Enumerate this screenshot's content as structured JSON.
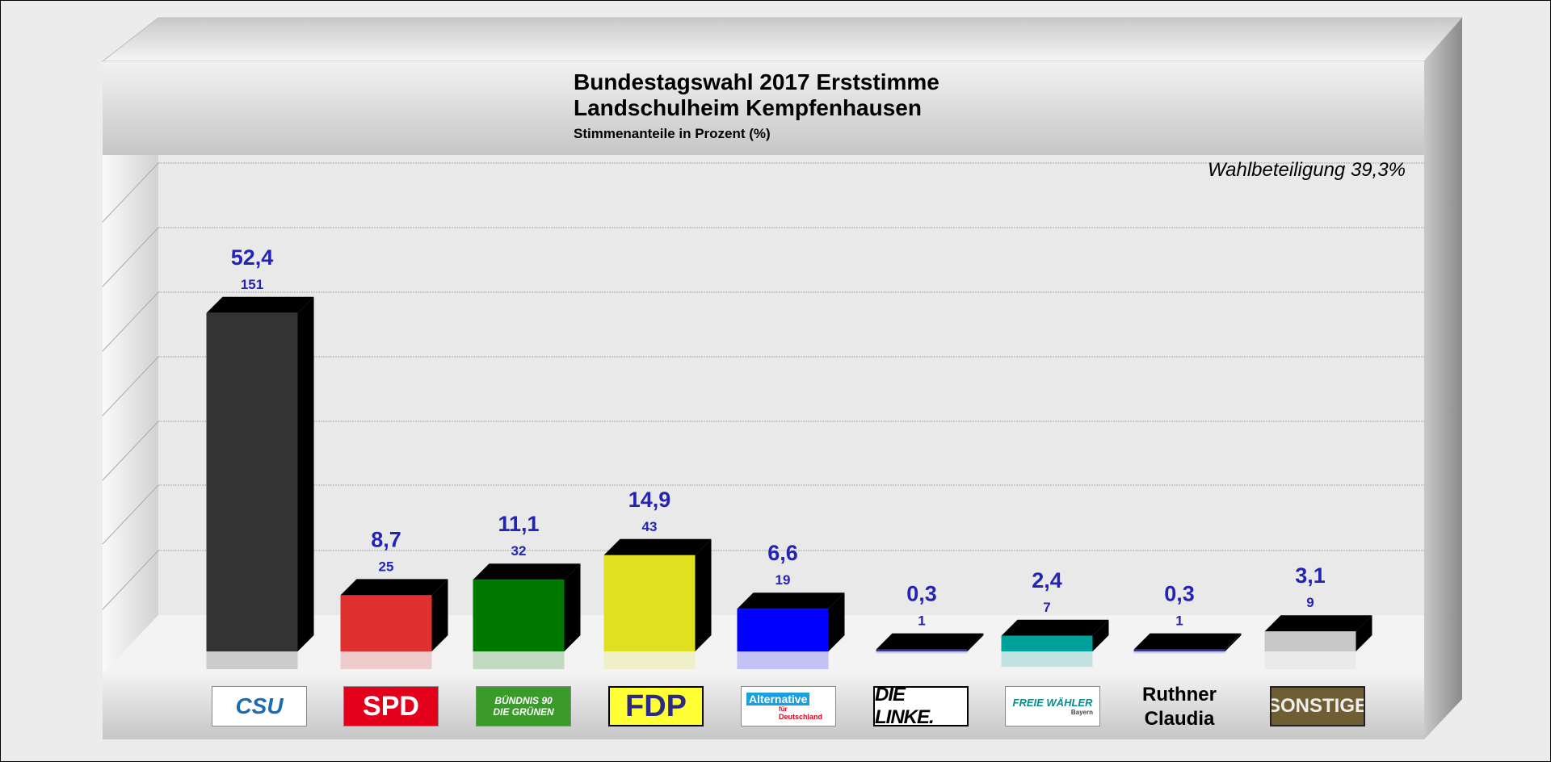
{
  "chart_data": {
    "type": "bar",
    "title": "Bundestagswahl 2017 Erststimme",
    "subtitle": "Landschulheim Kempfenhausen",
    "ylabel": "Stimmenanteile in Prozent (%)",
    "annotation": "Wahlbeteiligung 39,3%",
    "ylim": [
      0,
      60
    ],
    "grid": true,
    "categories": [
      "CSU",
      "SPD",
      "BÜNDNIS 90 DIE GRÜNEN",
      "FDP",
      "Alternative für Deutschland",
      "DIE LINKE.",
      "FREIE WÄHLER Bayern",
      "Ruthner Claudia",
      "SONSTIGE"
    ],
    "values": [
      52.4,
      8.7,
      11.1,
      14.9,
      6.6,
      0.3,
      2.4,
      0.3,
      3.1
    ],
    "value_labels": [
      "52,4",
      "8,7",
      "11,1",
      "14,9",
      "6,6",
      "0,3",
      "2,4",
      "0,3",
      "3,1"
    ],
    "votes": [
      "151",
      "25",
      "32",
      "43",
      "19",
      "1",
      "7",
      "1",
      "9"
    ],
    "colors": [
      "#333333",
      "#e03131",
      "#007800",
      "#e0e020",
      "#0000ff",
      "#3535a0",
      "#00a09a",
      "#3535a0",
      "#c8c8c8"
    ]
  },
  "logos": {
    "csu": "CSU",
    "spd": "SPD",
    "gruene1": "BÜNDNIS 90",
    "gruene2": "DIE GRÜNEN",
    "fdp": "FDP",
    "afd1": "Alternative",
    "afd2": "für",
    "afd3": "Deutschland",
    "linke": "DIE LINKE.",
    "fw1": "FREIE WÄHLER",
    "fw2": "Bayern",
    "ruthner1": "Ruthner",
    "ruthner2": "Claudia",
    "sonstige": "SONSTIGE"
  }
}
